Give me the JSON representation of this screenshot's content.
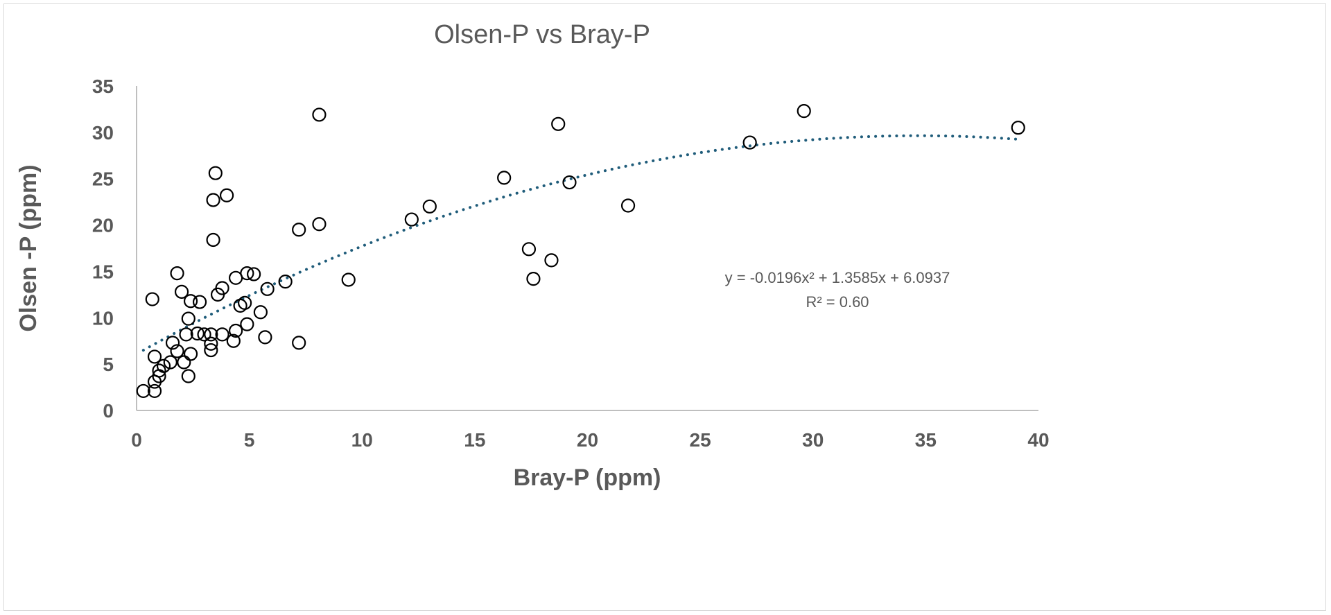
{
  "chart_data": {
    "type": "scatter",
    "title": "Olsen-P vs Bray-P",
    "xlabel": "Bray-P (ppm)",
    "ylabel": "Olsen -P (ppm)",
    "xlim": [
      0,
      40
    ],
    "ylim": [
      0,
      35
    ],
    "xticks": [
      "0",
      "5",
      "10",
      "15",
      "20",
      "25",
      "30",
      "35",
      "40"
    ],
    "yticks": [
      "0",
      "5",
      "10",
      "15",
      "20",
      "25",
      "30",
      "35"
    ],
    "grid": false,
    "marker": "open-circle",
    "colors": {
      "marker": "#000000",
      "trendline": "#1f5c7a",
      "text": "#595959",
      "axis": "#bfbfbf"
    },
    "points": [
      [
        0.3,
        2.1
      ],
      [
        0.8,
        2.1
      ],
      [
        0.8,
        3.1
      ],
      [
        0.7,
        12.0
      ],
      [
        0.8,
        5.8
      ],
      [
        1.0,
        4.3
      ],
      [
        1.0,
        3.7
      ],
      [
        1.2,
        4.8
      ],
      [
        1.5,
        5.2
      ],
      [
        1.6,
        7.3
      ],
      [
        1.8,
        6.4
      ],
      [
        1.8,
        14.8
      ],
      [
        2.0,
        12.8
      ],
      [
        2.1,
        5.2
      ],
      [
        2.2,
        8.2
      ],
      [
        2.3,
        3.7
      ],
      [
        2.3,
        9.9
      ],
      [
        2.4,
        11.8
      ],
      [
        2.4,
        6.1
      ],
      [
        2.7,
        8.3
      ],
      [
        2.8,
        11.7
      ],
      [
        3.0,
        8.2
      ],
      [
        3.3,
        6.5
      ],
      [
        3.3,
        7.2
      ],
      [
        3.3,
        8.2
      ],
      [
        3.4,
        22.7
      ],
      [
        3.4,
        18.4
      ],
      [
        3.5,
        25.6
      ],
      [
        3.6,
        12.5
      ],
      [
        3.8,
        13.2
      ],
      [
        3.8,
        8.2
      ],
      [
        4.0,
        23.2
      ],
      [
        4.3,
        7.5
      ],
      [
        4.4,
        14.3
      ],
      [
        4.4,
        8.6
      ],
      [
        4.6,
        11.3
      ],
      [
        4.8,
        11.6
      ],
      [
        4.9,
        14.8
      ],
      [
        4.9,
        9.3
      ],
      [
        5.2,
        14.7
      ],
      [
        5.5,
        10.6
      ],
      [
        5.7,
        7.9
      ],
      [
        5.8,
        13.1
      ],
      [
        6.6,
        13.9
      ],
      [
        7.2,
        19.5
      ],
      [
        7.2,
        7.3
      ],
      [
        8.1,
        31.9
      ],
      [
        8.1,
        20.1
      ],
      [
        9.4,
        14.1
      ],
      [
        12.2,
        20.6
      ],
      [
        13.0,
        22.0
      ],
      [
        16.3,
        25.1
      ],
      [
        17.4,
        17.4
      ],
      [
        17.6,
        14.2
      ],
      [
        18.4,
        16.2
      ],
      [
        18.7,
        30.9
      ],
      [
        19.2,
        24.6
      ],
      [
        21.8,
        22.1
      ],
      [
        27.2,
        28.9
      ],
      [
        29.6,
        32.3
      ],
      [
        39.1,
        30.5
      ]
    ],
    "trendline": {
      "type": "polynomial",
      "coefficients": [
        -0.0196,
        1.3585,
        6.0937
      ],
      "x_range": [
        0.3,
        39.1
      ],
      "style": "dotted",
      "equation_label": "y = -0.0196x² + 1.3585x + 6.0937",
      "r2_label": "R² = 0.60"
    }
  }
}
